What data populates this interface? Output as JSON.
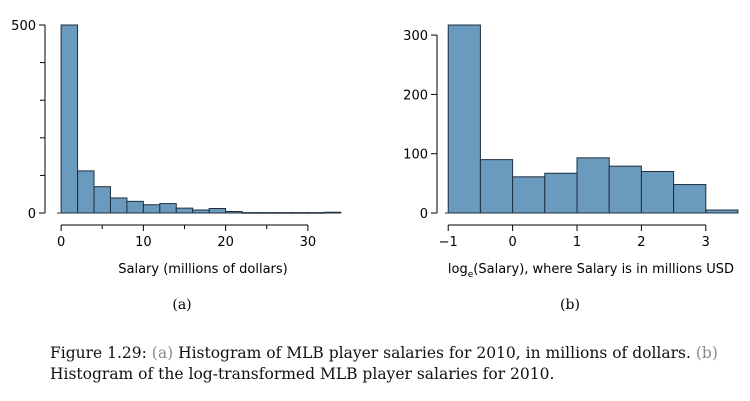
{
  "chart_data": [
    {
      "type": "bar",
      "panel_label": "(a)",
      "title": "",
      "xlabel": "Salary (millions of dollars)",
      "ylabel": "",
      "bin_edges": [
        0,
        2,
        4,
        6,
        8,
        10,
        12,
        14,
        16,
        18,
        20,
        22,
        24,
        26,
        28,
        30,
        32,
        34
      ],
      "values": [
        500,
        112,
        70,
        40,
        31,
        22,
        25,
        13,
        8,
        12,
        4,
        1,
        1,
        1,
        1,
        1,
        2
      ],
      "xlim": [
        -0.5,
        35
      ],
      "ylim": [
        0,
        500
      ],
      "x_ticks": [
        0,
        10,
        20,
        30
      ],
      "y_ticks": [
        0,
        500
      ],
      "grid": false,
      "bar_color": "#6b9abf",
      "edge_color": "#1f2f3f"
    },
    {
      "type": "bar",
      "panel_label": "(b)",
      "title": "",
      "xlabel_main": "log",
      "xlabel_sub": "e",
      "xlabel_rest": "(Salary), where Salary is in millions USD",
      "ylabel": "",
      "bin_edges": [
        -1,
        -0.5,
        0,
        0.5,
        1,
        1.5,
        2,
        2.5,
        3,
        3.5
      ],
      "values": [
        317,
        90,
        61,
        67,
        93,
        79,
        70,
        48,
        5
      ],
      "xlim": [
        -1.05,
        3.5
      ],
      "ylim": [
        0,
        300
      ],
      "x_ticks": [
        -1,
        0,
        1,
        2,
        3
      ],
      "x_tick_labels": [
        "−1",
        "0",
        "1",
        "2",
        "3"
      ],
      "y_ticks": [
        0,
        100,
        200,
        300
      ],
      "grid": false,
      "bar_color": "#6b9abf",
      "edge_color": "#1f2f3f"
    }
  ],
  "caption": {
    "prefix": "Figure 1.29: ",
    "ref_a": "(a)",
    "text_a": " Histogram of MLB player salaries for 2010, in millions of dollars. ",
    "ref_b": "(b)",
    "text_b": " Histogram of the log-transformed MLB player salaries for 2010."
  }
}
